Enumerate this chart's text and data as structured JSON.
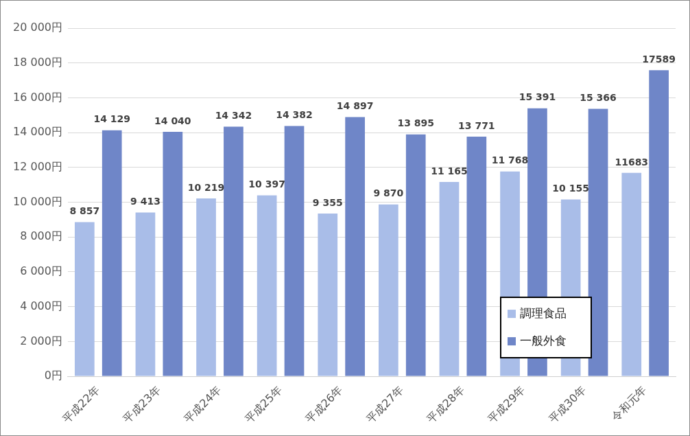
{
  "chart_data": {
    "type": "bar",
    "categories": [
      "平成22年",
      "平成23年",
      "平成24年",
      "平成25年",
      "平成26年",
      "平成27年",
      "平成28年",
      "平成29年",
      "平成30年",
      "令和元年"
    ],
    "series": [
      {
        "name": "調理食品",
        "color": "#a9bde8",
        "values": [
          8857,
          9413,
          10219,
          10397,
          9355,
          9870,
          11165,
          11768,
          10155,
          11683
        ],
        "value_labels": [
          "8 857",
          "9 413",
          "10 219",
          "10 397",
          "9 355",
          "9 870",
          "11 165",
          "11 768",
          "10 155",
          "11683"
        ]
      },
      {
        "name": "一般外食",
        "color": "#6f86c8",
        "values": [
          14129,
          14040,
          14342,
          14382,
          14897,
          13895,
          13771,
          15391,
          15366,
          17589
        ],
        "value_labels": [
          "14 129",
          "14 040",
          "14 342",
          "14 382",
          "14 897",
          "13 895",
          "13 771",
          "15 391",
          "15 366",
          "17589"
        ]
      }
    ],
    "ylim": [
      0,
      20000
    ],
    "yticks": [
      {
        "value": 0,
        "label": "0円"
      },
      {
        "value": 2000,
        "label": "2 000円"
      },
      {
        "value": 4000,
        "label": "4 000円"
      },
      {
        "value": 6000,
        "label": "6 000円"
      },
      {
        "value": 8000,
        "label": "8 000円"
      },
      {
        "value": 10000,
        "label": "10 000円"
      },
      {
        "value": 12000,
        "label": "12 000円"
      },
      {
        "value": 14000,
        "label": "14 000円"
      },
      {
        "value": 16000,
        "label": "16 000円"
      },
      {
        "value": 18000,
        "label": "18 000円"
      },
      {
        "value": 20000,
        "label": "20 000円"
      }
    ],
    "grid": "y",
    "legend": "bottom right"
  }
}
